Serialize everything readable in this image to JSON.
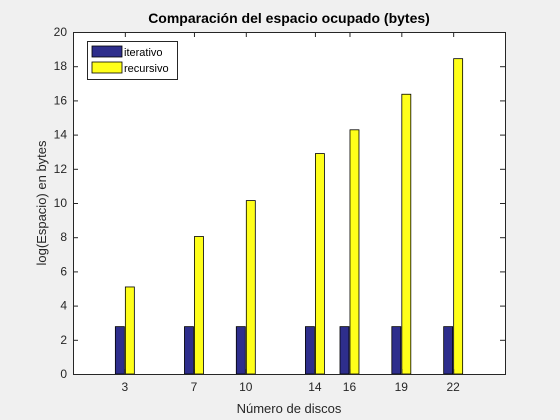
{
  "chart_data": {
    "type": "bar",
    "title": "Comparación del espacio ocupado (bytes)",
    "xlabel": "Número de discos",
    "ylabel": "log(Espacio) en bytes",
    "x": [
      3,
      7,
      10,
      14,
      16,
      19,
      22
    ],
    "xlim": [
      0,
      25
    ],
    "ylim": [
      0,
      20
    ],
    "yticks": [
      0,
      2,
      4,
      6,
      8,
      10,
      12,
      14,
      16,
      18,
      20
    ],
    "grid": false,
    "legend_position": "top-left",
    "series": [
      {
        "name": "iterativo",
        "color": "#2e2e8c",
        "values": [
          2.77,
          2.77,
          2.77,
          2.77,
          2.77,
          2.77,
          2.77
        ]
      },
      {
        "name": "recursivo",
        "color": "#ffff1a",
        "values": [
          5.09,
          8.04,
          10.14,
          12.89,
          14.28,
          16.36,
          18.44
        ]
      }
    ]
  }
}
